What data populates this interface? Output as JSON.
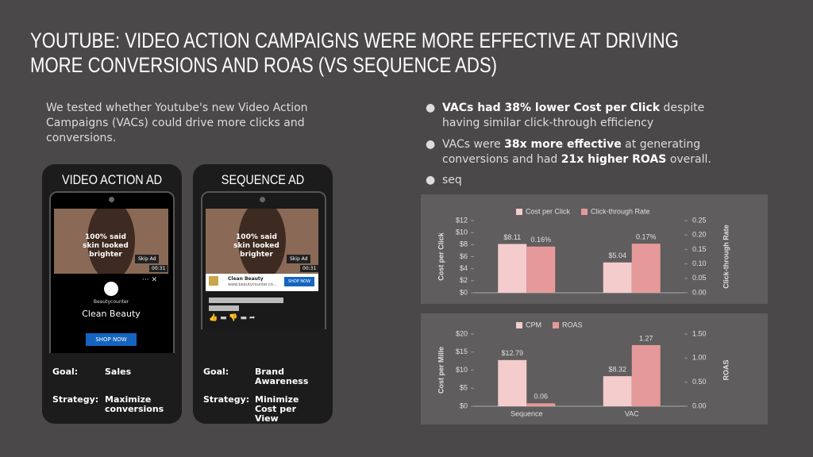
{
  "title": "YOUTUBE: VIDEO ACTION CAMPAIGNS WERE MORE EFFECTIVE AT DRIVING MORE CONVERSIONS AND ROAS (VS SEQUENCE ADS)",
  "intro": "We tested whether Youtube's new Video Action Campaigns (VACs) could drive more clicks and conversions.",
  "bullets": [
    {
      "parts": [
        {
          "text": "VACs had 38% lower Cost per Click",
          "bold": true
        },
        {
          "text": " despite having similar click-through efficiency",
          "bold": false
        }
      ]
    },
    {
      "parts": [
        {
          "text": "VACs were ",
          "bold": false
        },
        {
          "text": "38x more effective",
          "bold": true
        },
        {
          "text": " at generating conversions and had ",
          "bold": false
        },
        {
          "text": "21x higher ROAS",
          "bold": true
        },
        {
          "text": " overall.",
          "bold": false
        }
      ]
    },
    {
      "parts": [
        {
          "text": "seq",
          "bold": false
        }
      ]
    }
  ],
  "phones": [
    {
      "label": "VIDEO ACTION AD",
      "ad_text": "100% said skin looked brighter",
      "skip": "Skip Ad",
      "time": "00:31",
      "brand": "Beautycounter",
      "name": "Clean Beauty",
      "button": "SHOP NOW",
      "goal_label": "Goal:",
      "goal": "Sales",
      "strategy_label": "Strategy:",
      "strategy": "Maximize conversions"
    },
    {
      "label": "SEQUENCE AD",
      "ad_text": "100% said skin looked brighter",
      "skip": "Skip Ad",
      "time": "00:31",
      "name": "Clean Beauty",
      "url": "www.beautycounter.co...",
      "button": "SHOP NOW",
      "goal_label": "Goal:",
      "goal": "Brand Awareness",
      "strategy_label": "Strategy:",
      "strategy": "Minimize Cost per View"
    }
  ],
  "chart_data": [
    {
      "type": "bar",
      "categories": [
        null,
        null
      ],
      "y_label": "Cost per Click",
      "y2_label": "Click-through Rate",
      "series": [
        {
          "name": "Cost per Click",
          "color": "#f4cccc",
          "values": [
            8.11,
            5.04
          ],
          "value_labels": [
            "$8.11",
            "$5.04"
          ]
        },
        {
          "name": "Click-through Rate",
          "color": "#e6999a",
          "axis": "y2",
          "values": [
            0.16,
            0.17
          ],
          "value_labels": [
            "0.16%",
            "0.17%"
          ]
        }
      ],
      "ylim": [
        0,
        12
      ],
      "yticks": [
        {
          "value": 0,
          "label": "$0"
        },
        {
          "value": 2,
          "label": "$2"
        },
        {
          "value": 4,
          "label": "$4"
        },
        {
          "value": 6,
          "label": "$6"
        },
        {
          "value": 8,
          "label": "$8"
        },
        {
          "value": 10,
          "label": "$10"
        },
        {
          "value": 12,
          "label": "$12"
        }
      ],
      "y2lim": [
        0,
        0.25
      ],
      "y2ticks": [
        {
          "value": 0,
          "label": "0.00"
        },
        0.05,
        {
          "value": 0.1,
          "label": "0.10"
        },
        0.15,
        {
          "value": 0.2,
          "label": "0.20"
        },
        0.25
      ]
    },
    {
      "type": "bar",
      "categories": [
        "Sequence",
        "VAC"
      ],
      "y_label": "Cost per Mille",
      "y2_label": "ROAS",
      "series": [
        {
          "name": "CPM",
          "color": "#f4cccc",
          "values": [
            12.79,
            8.32
          ],
          "value_labels": [
            "$12.79",
            "$8.32"
          ]
        },
        {
          "name": "ROAS",
          "color": "#e6999a",
          "axis": "y2",
          "values": [
            0.06,
            1.27
          ]
        }
      ],
      "ylim": [
        0,
        20
      ],
      "yticks": [
        {
          "value": 0,
          "label": "$0"
        },
        {
          "value": 5,
          "label": "$5"
        },
        {
          "value": 10,
          "label": "$10"
        },
        {
          "value": 15,
          "label": "$15"
        },
        {
          "value": 20,
          "label": "$20"
        }
      ],
      "y2lim": [
        0,
        1.5
      ],
      "y2ticks": [
        {
          "value": 0,
          "label": "0.00"
        },
        {
          "value": 0.5,
          "label": "0.50"
        },
        {
          "value": 1,
          "label": "1.00"
        },
        {
          "value": 1.5,
          "label": "1.50"
        }
      ]
    }
  ]
}
